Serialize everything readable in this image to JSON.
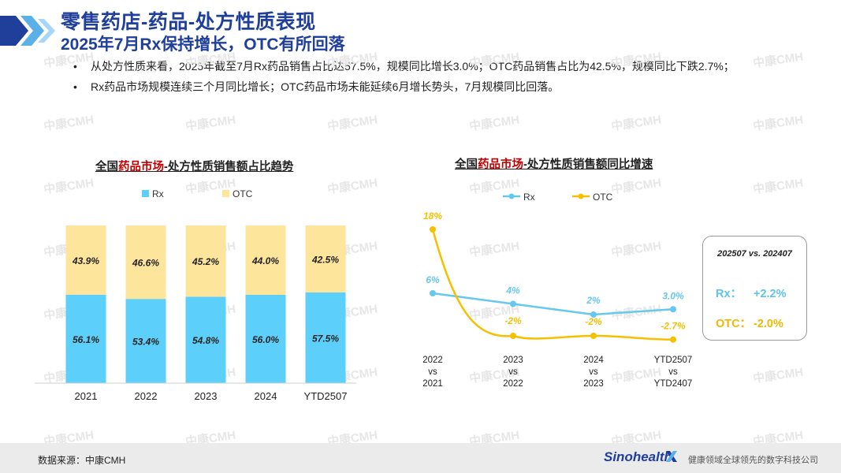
{
  "header": {
    "title": "零售药店-药品-处方性质表现",
    "subtitle": "2025年7月Rx保持增长，OTC有所回落"
  },
  "bullets": [
    "从处方性质来看，2025年截至7月Rx药品销售占比达57.5%，规模同比增长3.0%；OTC药品销售占比为42.5%，规模同比下跌2.7%；",
    "Rx药品市场规模连续三个月同比增长；OTC药品市场未能延续6月增长势头，7月规模同比回落。"
  ],
  "bar_title": {
    "prefix": "全国",
    "highlight": "药品市场",
    "suffix": "-处方性质销售额占比趋势"
  },
  "line_title": {
    "prefix": "全国",
    "highlight": "药品市场",
    "suffix": "-处方性质销售额同比增速"
  },
  "colors": {
    "rx_bar": "#5cd0fa",
    "otc_bar": "#fde59c",
    "rx_line": "#66c8ef",
    "otc_line": "#f5c000",
    "title": "#1f3f9a"
  },
  "chart_data": [
    {
      "type": "bar",
      "stacked": true,
      "title": "全国药品市场-处方性质销售额占比趋势",
      "categories": [
        "2021",
        "2022",
        "2023",
        "2024",
        "YTD2507"
      ],
      "series": [
        {
          "name": "Rx",
          "values": [
            56.1,
            53.4,
            54.8,
            56.0,
            57.5
          ],
          "labels": [
            "56.1%",
            "53.4%",
            "54.8%",
            "56.0%",
            "57.5%"
          ]
        },
        {
          "name": "OTC",
          "values": [
            43.9,
            46.6,
            45.2,
            44.0,
            42.5
          ],
          "labels": [
            "43.9%",
            "46.6%",
            "45.2%",
            "44.0%",
            "42.5%"
          ]
        }
      ],
      "ylim": [
        0,
        100
      ],
      "legend": "top"
    },
    {
      "type": "line",
      "title": "全国药品市场-处方性质销售额同比增速",
      "categories": [
        [
          "2022",
          "vs",
          "2021"
        ],
        [
          "2023",
          "vs",
          "2022"
        ],
        [
          "2024",
          "vs",
          "2023"
        ],
        [
          "YTD2507",
          "vs",
          "YTD2407"
        ]
      ],
      "series": [
        {
          "name": "Rx",
          "values": [
            6,
            4,
            2,
            3.0
          ],
          "labels": [
            "6%",
            "4%",
            "2%",
            "3.0%"
          ]
        },
        {
          "name": "OTC",
          "values": [
            18,
            -2,
            -2,
            -2.7
          ],
          "labels": [
            "18%",
            "-2%",
            "-2%",
            "-2.7%"
          ]
        }
      ],
      "legend": "top"
    }
  ],
  "summary_box": {
    "title": "202507 vs. 202407",
    "rx_label": "Rx：",
    "rx_value": "+2.2%",
    "otc_label": "OTC：",
    "otc_value": "-2.0%"
  },
  "footer": {
    "source": "数据来源：中康CMH",
    "brand": "Sinohealth",
    "tagline": "健康领域全球领先的数字科技公司"
  },
  "watermark": "中康CMH"
}
